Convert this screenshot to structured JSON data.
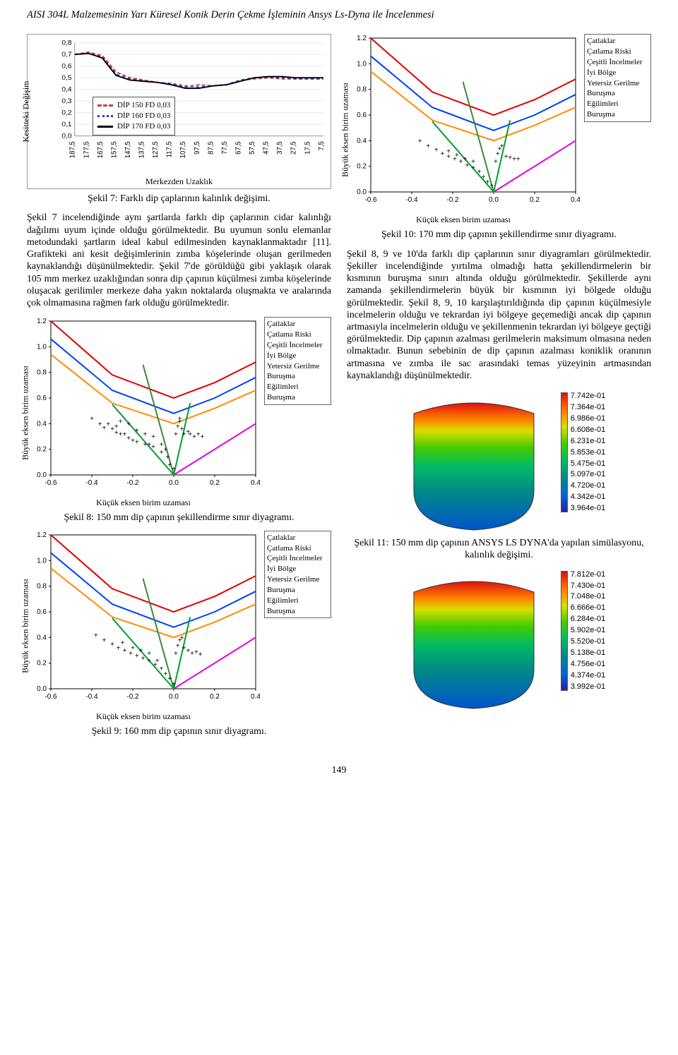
{
  "page_title": "AISI 304L Malzemesinin Yarı Küresel Konik Derin Çekme İşleminin Ansys Ls-Dyna ile İncelenmesi",
  "page_number": "149",
  "fig7": {
    "type": "line",
    "caption": "Şekil 7: Farklı dip çaplarının kalınlık değişimi.",
    "ylabel": "Kesitteki Değişim",
    "xlabel": "Merkezden Uzaklık",
    "ylim": [
      0,
      0.8
    ],
    "ytick_step": 0.1,
    "x_ticks": [
      "187,5",
      "177,5",
      "167,5",
      "157,5",
      "147,5",
      "137,5",
      "127,5",
      "117,5",
      "107,5",
      "97,5",
      "87,5",
      "77,5",
      "67,5",
      "57,5",
      "47,5",
      "37,5",
      "27,5",
      "17,5",
      "7,5"
    ],
    "series": [
      {
        "label": "DİP 150 FD 0,03",
        "color": "#d43a3a",
        "dash": "5,3",
        "y": [
          0.7,
          0.72,
          0.69,
          0.55,
          0.5,
          0.48,
          0.46,
          0.45,
          0.42,
          0.44,
          0.43,
          0.44,
          0.48,
          0.49,
          0.5,
          0.49,
          0.49,
          0.49,
          0.49
        ]
      },
      {
        "label": "DİP 160 FD 0,03",
        "color": "#3b3bc8",
        "dash": "4,4",
        "y": [
          0.7,
          0.71,
          0.68,
          0.53,
          0.49,
          0.47,
          0.46,
          0.45,
          0.43,
          0.42,
          0.43,
          0.44,
          0.48,
          0.5,
          0.5,
          0.5,
          0.49,
          0.49,
          0.49
        ]
      },
      {
        "label": "DİP 170 FD 0,03",
        "color": "#000000",
        "dash": "",
        "y": [
          0.7,
          0.71,
          0.67,
          0.52,
          0.48,
          0.47,
          0.46,
          0.44,
          0.41,
          0.41,
          0.43,
          0.44,
          0.47,
          0.5,
          0.51,
          0.51,
          0.5,
          0.5,
          0.5
        ]
      }
    ],
    "background_color": "#ffffff",
    "grid_color": "#e8e8e8"
  },
  "para1": "Şekil 7 incelendiğinde aynı şartlarda farklı dip çaplarının cidar kalınlığı dağılımı uyum içinde olduğu görülmektedir. Bu uyumun sonlu elemanlar metodundaki şartların ideal kabul edilmesinden kaynaklanmaktadır [11]. Grafikteki ani kesit değişimlerinin zımba köşelerinde oluşan gerilmeden kaynaklandığı düşünülmektedir. Şekil 7'de görüldüğü gibi yaklaşık olarak 105 mm merkez uzaklığından sonra dip çapının küçülmesi zımba köşelerinde oluşacak gerilimler merkeze daha yakın noktalarda oluşmakta ve aralarında çok olmamasına rağmen fark olduğu görülmektedir.",
  "fld_common": {
    "type": "forming-limit-diagram",
    "xlabel": "Küçük eksen birim uzaması",
    "ylabel": "Büyük eksen birim uzaması",
    "xlim": [
      -0.6,
      0.4
    ],
    "xtick_step": 0.2,
    "ylim": [
      0,
      1.2
    ],
    "ytick_step": 0.2,
    "legend": [
      "Çatlaklar",
      "Çatlama Riski",
      "Çeşitli İncelmeler",
      "İyi Bölge",
      "Yetersiz Gerilme",
      "Buruşma Eğilimleri",
      "Buruşma"
    ],
    "limit_curves": [
      {
        "color": "#e00000",
        "w": 2,
        "pts": [
          [
            -0.6,
            1.2
          ],
          [
            -0.3,
            0.78
          ],
          [
            0.0,
            0.6
          ],
          [
            0.2,
            0.72
          ],
          [
            0.4,
            0.88
          ]
        ]
      },
      {
        "color": "#0040ff",
        "w": 2,
        "pts": [
          [
            -0.6,
            1.06
          ],
          [
            -0.3,
            0.66
          ],
          [
            0.0,
            0.48
          ],
          [
            0.2,
            0.6
          ],
          [
            0.4,
            0.76
          ]
        ]
      },
      {
        "color": "#ff8c00",
        "w": 2,
        "pts": [
          [
            -0.6,
            0.94
          ],
          [
            -0.3,
            0.56
          ],
          [
            0.0,
            0.4
          ],
          [
            0.2,
            0.52
          ],
          [
            0.4,
            0.66
          ]
        ]
      },
      {
        "color": "#e000e0",
        "w": 2,
        "pts": [
          [
            0.0,
            0.0
          ],
          [
            0.4,
            0.4
          ]
        ]
      },
      {
        "color": "#00a030",
        "w": 2,
        "pts": [
          [
            0.0,
            0.0
          ],
          [
            0.08,
            0.56
          ]
        ]
      },
      {
        "color": "#00a030",
        "w": 2,
        "pts": [
          [
            0.0,
            0.0
          ],
          [
            -0.3,
            0.55
          ]
        ]
      },
      {
        "color": "#3a8a3a",
        "w": 2,
        "pts": [
          [
            0.0,
            0.0
          ],
          [
            -0.15,
            0.86
          ]
        ]
      }
    ]
  },
  "fig8": {
    "caption": "Şekil 8: 150 mm dip çapının şekillendirme sınır diyagramı.",
    "cloud": [
      [
        -0.4,
        0.42
      ],
      [
        -0.36,
        0.38
      ],
      [
        -0.34,
        0.35
      ],
      [
        -0.32,
        0.38
      ],
      [
        -0.3,
        0.34
      ],
      [
        -0.28,
        0.31
      ],
      [
        -0.26,
        0.3
      ],
      [
        -0.24,
        0.3
      ],
      [
        -0.22,
        0.27
      ],
      [
        -0.2,
        0.25
      ],
      [
        -0.18,
        0.24
      ],
      [
        -0.14,
        0.22
      ],
      [
        -0.12,
        0.22
      ],
      [
        -0.1,
        0.2
      ],
      [
        -0.06,
        0.16
      ],
      [
        -0.03,
        0.12
      ],
      [
        -0.02,
        0.06
      ],
      [
        0.0,
        0.03
      ],
      [
        0.01,
        0.3
      ],
      [
        0.02,
        0.36
      ],
      [
        0.03,
        0.4
      ],
      [
        0.03,
        0.42
      ],
      [
        0.04,
        0.34
      ],
      [
        0.05,
        0.3
      ],
      [
        0.07,
        0.32
      ],
      [
        0.08,
        0.3
      ],
      [
        0.1,
        0.28
      ],
      [
        0.12,
        0.3
      ],
      [
        0.14,
        0.28
      ],
      [
        -0.28,
        0.36
      ],
      [
        -0.26,
        0.4
      ],
      [
        -0.22,
        0.38
      ],
      [
        -0.18,
        0.33
      ],
      [
        -0.14,
        0.3
      ],
      [
        -0.1,
        0.28
      ],
      [
        -0.06,
        0.22
      ],
      [
        -0.04,
        0.18
      ]
    ],
    "cloud_color": "#e0a000"
  },
  "fig9": {
    "caption": "Şekil 9: 160 mm dip çapının sınır diyagramı.",
    "cloud": [
      [
        -0.38,
        0.4
      ],
      [
        -0.34,
        0.36
      ],
      [
        -0.3,
        0.33
      ],
      [
        -0.27,
        0.3
      ],
      [
        -0.24,
        0.28
      ],
      [
        -0.21,
        0.26
      ],
      [
        -0.18,
        0.24
      ],
      [
        -0.15,
        0.22
      ],
      [
        -0.12,
        0.2
      ],
      [
        -0.09,
        0.17
      ],
      [
        -0.06,
        0.14
      ],
      [
        -0.04,
        0.1
      ],
      [
        -0.02,
        0.06
      ],
      [
        0.0,
        0.02
      ],
      [
        0.01,
        0.26
      ],
      [
        0.02,
        0.32
      ],
      [
        0.03,
        0.36
      ],
      [
        0.04,
        0.38
      ],
      [
        0.05,
        0.3
      ],
      [
        0.07,
        0.28
      ],
      [
        0.09,
        0.26
      ],
      [
        0.11,
        0.27
      ],
      [
        0.13,
        0.25
      ],
      [
        -0.25,
        0.34
      ],
      [
        -0.2,
        0.3
      ],
      [
        -0.16,
        0.28
      ],
      [
        -0.12,
        0.26
      ],
      [
        -0.08,
        0.2
      ]
    ],
    "cloud_color": "#20a020"
  },
  "fig10": {
    "caption": "Şekil 10: 170 mm dip çapının şekillendirme sınır diyagramı.",
    "cloud": [
      [
        -0.36,
        0.38
      ],
      [
        -0.32,
        0.34
      ],
      [
        -0.28,
        0.31
      ],
      [
        -0.25,
        0.28
      ],
      [
        -0.22,
        0.26
      ],
      [
        -0.19,
        0.24
      ],
      [
        -0.16,
        0.22
      ],
      [
        -0.13,
        0.19
      ],
      [
        -0.1,
        0.17
      ],
      [
        -0.07,
        0.14
      ],
      [
        -0.05,
        0.1
      ],
      [
        -0.03,
        0.06
      ],
      [
        -0.01,
        0.03
      ],
      [
        0.01,
        0.22
      ],
      [
        0.02,
        0.28
      ],
      [
        0.03,
        0.32
      ],
      [
        0.04,
        0.34
      ],
      [
        0.06,
        0.26
      ],
      [
        0.08,
        0.25
      ],
      [
        0.1,
        0.24
      ],
      [
        0.12,
        0.24
      ],
      [
        -0.22,
        0.3
      ],
      [
        -0.18,
        0.27
      ],
      [
        -0.14,
        0.24
      ],
      [
        -0.1,
        0.22
      ]
    ],
    "cloud_color": "#20a020"
  },
  "para2": "Şekil 8, 9 ve 10'da farklı dip çaplarının sınır diyagramları görülmektedir. Şekiller incelendiğinde yırtılma olmadığı hatta şekillendirmelerin bir kısmının buruşma sınırı altında olduğu görülmektedir. Şekillerde aynı zamanda şekillendirmelerin büyük bir kısmının iyi bölgede olduğu görülmektedir. Şekil 8, 9, 10 karşılaştırıldığında dip çapının küçülmesiyle incelmelerin olduğu ve tekrardan iyi bölgeye geçemediği ancak dip çapının artmasıyla incelmelerin olduğu ve şekillenmenin tekrardan iyi bölgeye geçtiği görülmektedir. Dip çapının azalması gerilmelerin maksimum olmasına neden olmaktadır. Bunun sebebinin de dip çapının azalması koniklik oranının artmasına ve zımba ile sac arasındaki temas yüzeyinin artmasından kaynaklandığı düşünülmektedir.",
  "fig11": {
    "caption": "Şekil 11: 150 mm dip çapının ANSYS LS DYNA'da yapılan simülasyonu, kalınlık değişimi.",
    "colorbar_height": 170,
    "scale": [
      "7.742e-01",
      "7.364e-01",
      "6.986e-01",
      "6.608e-01",
      "6.231e-01",
      "5.853e-01",
      "5.475e-01",
      "5.097e-01",
      "4.720e-01",
      "4.342e-01",
      "3.964e-01"
    ]
  },
  "fig12": {
    "caption": "",
    "colorbar_height": 170,
    "scale": [
      "7.812e-01",
      "7.430e-01",
      "7.048e-01",
      "6.666e-01",
      "6.284e-01",
      "5.902e-01",
      "5.520e-01",
      "5.138e-01",
      "4.756e-01",
      "4.374e-01",
      "3.992e-01"
    ]
  }
}
